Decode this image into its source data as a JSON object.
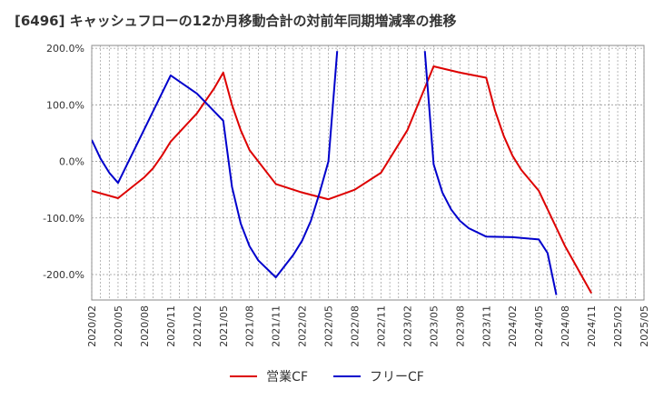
{
  "chart_data": {
    "type": "line",
    "title": "[6496]  キャッシュフローの12か月移動合計の対前年同期増減率の推移",
    "xlabel": "",
    "ylabel": "",
    "ylim": [
      -245,
      205
    ],
    "yticks": [
      200,
      100,
      0,
      -100,
      -200
    ],
    "ytick_labels": [
      "200.0%",
      "100.0%",
      "0.0%",
      "-100.0%",
      "-200.0%"
    ],
    "categories": [
      "2020/02",
      "2020/05",
      "2020/08",
      "2020/11",
      "2021/02",
      "2021/05",
      "2021/08",
      "2021/11",
      "2022/02",
      "2022/05",
      "2022/08",
      "2022/11",
      "2023/02",
      "2023/05",
      "2023/08",
      "2023/11",
      "2024/02",
      "2024/05",
      "2024/08",
      "2024/11",
      "2025/02",
      "2025/05"
    ],
    "grid": true,
    "legend_position": "bottom-center",
    "series": [
      {
        "name": "営業CF",
        "color": "#dd0000",
        "points": [
          [
            "2020/02",
            -52
          ],
          [
            "2020/05",
            -65
          ],
          [
            "2020/08",
            -28
          ],
          [
            "2020/09",
            -12
          ],
          [
            "2020/10",
            10
          ],
          [
            "2020/11",
            35
          ],
          [
            "2021/02",
            85
          ],
          [
            "2021/04",
            130
          ],
          [
            "2021/05",
            157
          ],
          [
            "2021/06",
            100
          ],
          [
            "2021/07",
            55
          ],
          [
            "2021/08",
            20
          ],
          [
            "2021/11",
            -40
          ],
          [
            "2022/02",
            -55
          ],
          [
            "2022/05",
            -67
          ],
          [
            "2022/08",
            -50
          ],
          [
            "2022/11",
            -20
          ],
          [
            "2023/02",
            55
          ],
          [
            "2023/04",
            130
          ],
          [
            "2023/05",
            168
          ],
          [
            "2023/08",
            157
          ],
          [
            "2023/11",
            148
          ],
          [
            "2023/12",
            90
          ],
          [
            "2024/01",
            45
          ],
          [
            "2024/02",
            10
          ],
          [
            "2024/03",
            -15
          ],
          [
            "2024/05",
            -52
          ],
          [
            "2024/08",
            -150
          ],
          [
            "2024/11",
            -233
          ]
        ]
      },
      {
        "name": "フリーCF",
        "color": "#0000cc",
        "points": [
          [
            "2020/02",
            38
          ],
          [
            "2020/03",
            5
          ],
          [
            "2020/04",
            -20
          ],
          [
            "2020/05",
            -38
          ],
          [
            "2020/11",
            152
          ],
          [
            "2021/02",
            120
          ],
          [
            "2021/04",
            88
          ],
          [
            "2021/05",
            72
          ],
          [
            "2021/06",
            -45
          ],
          [
            "2021/07",
            -110
          ],
          [
            "2021/08",
            -150
          ],
          [
            "2021/09",
            -175
          ],
          [
            "2021/11",
            -205
          ],
          [
            "2022/01",
            -165
          ],
          [
            "2022/02",
            -140
          ],
          [
            "2022/03",
            -105
          ],
          [
            "2022/04",
            -55
          ],
          [
            "2022/05",
            0
          ],
          [
            "2022/06",
            195
          ]
        ]
      },
      {
        "name": "フリーCF",
        "color": "#0000cc",
        "points": [
          [
            "2023/04",
            195
          ],
          [
            "2023/05",
            -5
          ],
          [
            "2023/06",
            -55
          ],
          [
            "2023/07",
            -85
          ],
          [
            "2023/08",
            -105
          ],
          [
            "2023/09",
            -118
          ],
          [
            "2023/11",
            -133
          ],
          [
            "2024/02",
            -134
          ],
          [
            "2024/05",
            -138
          ],
          [
            "2024/06",
            -162
          ],
          [
            "2024/07",
            -236
          ]
        ]
      }
    ],
    "legend": [
      {
        "label": "営業CF",
        "color": "#dd0000"
      },
      {
        "label": "フリーCF",
        "color": "#0000cc"
      }
    ]
  }
}
